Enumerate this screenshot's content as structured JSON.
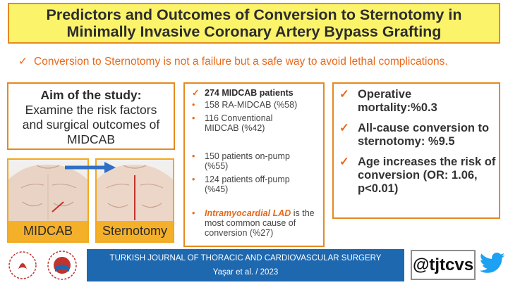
{
  "title": {
    "line1": "Predictors and Outcomes of Conversion to Sternotomy in",
    "line2": "Minimally Invasive Coronary Artery Bypass Grafting"
  },
  "subtitle": {
    "check": "✓",
    "text": "Conversion to Sternotomy is not a failure but a safe way to avoid lethal complications."
  },
  "aim": {
    "heading": "Aim of the study:",
    "lines": [
      "Examine the risk factors",
      "and surgical outcomes of",
      "MIDCAB"
    ]
  },
  "images": {
    "left_label": "MIDCAB",
    "right_label": "Sternotomy"
  },
  "middle": {
    "items": [
      {
        "bullet": "✓",
        "text": "274 MIDCAB patients"
      },
      {
        "bullet": "•",
        "text": "158 RA-MIDCAB (%58)"
      },
      {
        "bullet": "•",
        "text": "116 Conventional MIDCAB (%42)"
      },
      {
        "bullet": "•",
        "text": "150 patients on-pump (%55)"
      },
      {
        "bullet": "•",
        "text": "124 patients off-pump (%45)"
      },
      {
        "bullet": "•",
        "highlight": "Intramyocardial LAD",
        "text": " is the most common cause of conversion (%27)"
      }
    ]
  },
  "right": {
    "items": [
      {
        "bullet": "✓",
        "text": "Operative mortality:%0.3"
      },
      {
        "bullet": "✓",
        "text": "All-cause conversion to sternotomy: %9.5"
      },
      {
        "bullet": "✓",
        "text": "Age increases the risk of conversion (OR: 1.06, p<0.01)"
      }
    ]
  },
  "footer": {
    "journal": "TURKISH JOURNAL OF THORACIC AND CARDIOVASCULAR SURGERY",
    "authors": "Yaşar et al. / 2023",
    "handle": "@tjtcvs"
  },
  "colors": {
    "accent": "#e8691c",
    "title_bg": "#fbf36a",
    "label_bg": "#f5b02a",
    "footer_bg": "#1e68b0",
    "twitter": "#1da1f2"
  },
  "icons": [
    "check-icon",
    "bullet-icon",
    "arrow-right-icon",
    "twitter-bird-icon",
    "society-logo-icon"
  ]
}
